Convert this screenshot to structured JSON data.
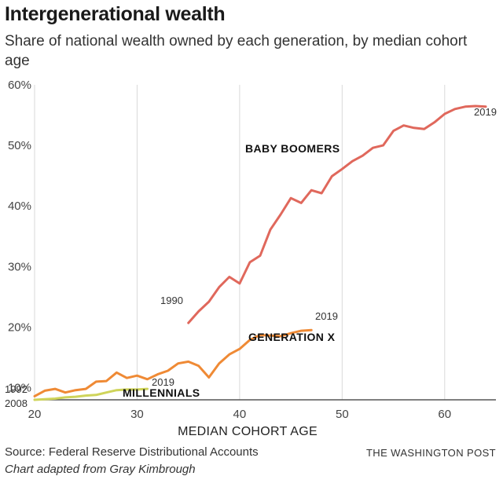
{
  "header": {
    "title": "Intergenerational wealth",
    "subtitle": "Share of national wealth owned by each generation, by median cohort age"
  },
  "footer": {
    "source": "Source: Federal Reserve Distributional Accounts",
    "credit": "Chart adapted from Gray Kimbrough",
    "brand": "THE WASHINGTON POST"
  },
  "colors": {
    "boomers": "#e0685c",
    "genx": "#ef8a35",
    "millennials": "#cfd45a",
    "grid": "#d9d9d9",
    "axis": "#555555"
  },
  "chart_data": {
    "type": "line",
    "title": "Intergenerational wealth",
    "subtitle": "Share of national wealth owned by each generation, by median cohort age",
    "xlabel": "MEDIAN COHORT AGE",
    "ylabel": "",
    "xlim": [
      20,
      65
    ],
    "ylim": [
      8,
      60
    ],
    "x_ticks": [
      20,
      30,
      40,
      50,
      60
    ],
    "y_ticks": [
      10,
      20,
      30,
      40,
      50,
      60
    ],
    "y_tick_labels": [
      "10%",
      "20%",
      "30%",
      "40%",
      "50%",
      "60%"
    ],
    "grid": "vertical",
    "series": [
      {
        "name": "BABY BOOMERS",
        "start_label": "1990",
        "end_label": "2019",
        "x": [
          35,
          36,
          37,
          38,
          39,
          40,
          41,
          42,
          43,
          44,
          45,
          46,
          47,
          48,
          49,
          50,
          51,
          52,
          53,
          54,
          55,
          56,
          57,
          58,
          59,
          60,
          61,
          62,
          63,
          64
        ],
        "values": [
          20.7,
          22.6,
          24.2,
          26.6,
          28.3,
          27.2,
          30.7,
          31.8,
          36.1,
          38.6,
          41.3,
          40.5,
          42.6,
          42.1,
          44.9,
          46.1,
          47.4,
          48.3,
          49.6,
          50.0,
          52.4,
          53.3,
          52.9,
          52.7,
          53.8,
          55.2,
          56.0,
          56.4,
          56.5,
          56.4
        ]
      },
      {
        "name": "GENERATION X",
        "start_label": "1992",
        "end_label": "2019",
        "x": [
          20,
          21,
          22,
          23,
          24,
          25,
          26,
          27,
          28,
          29,
          30,
          31,
          32,
          33,
          34,
          35,
          36,
          37,
          38,
          39,
          40,
          41,
          42,
          43,
          44,
          45,
          46,
          47
        ],
        "values": [
          8.6,
          9.5,
          9.8,
          9.2,
          9.6,
          9.8,
          11.0,
          11.1,
          12.5,
          11.6,
          12.0,
          11.4,
          12.2,
          12.8,
          14.0,
          14.3,
          13.6,
          11.7,
          14.0,
          15.5,
          16.4,
          17.9,
          18.7,
          18.6,
          18.5,
          19.0,
          19.4,
          19.5
        ]
      },
      {
        "name": "MILLENNIALS",
        "start_label": "2008",
        "end_label": "2019",
        "x": [
          20,
          21,
          22,
          23,
          24,
          25,
          26,
          27,
          28,
          29,
          30,
          31
        ],
        "values": [
          8.0,
          8.1,
          8.2,
          8.4,
          8.5,
          8.7,
          8.8,
          9.2,
          9.6,
          9.7,
          9.7,
          9.8
        ]
      }
    ]
  }
}
